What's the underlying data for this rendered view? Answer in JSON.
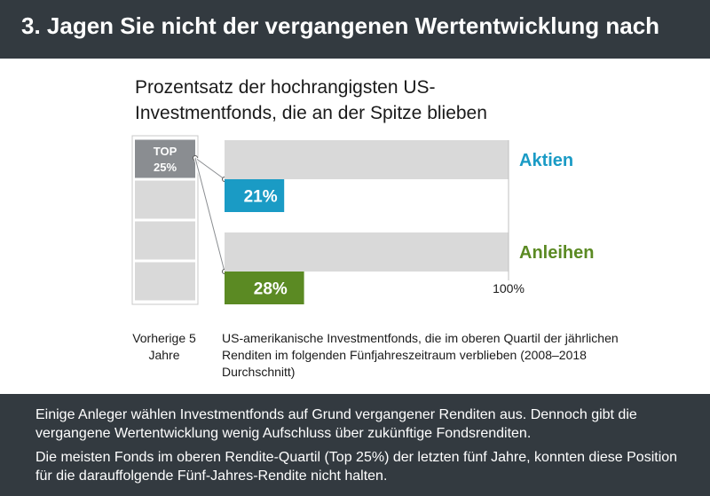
{
  "page": {
    "title": "3. Jagen Sie nicht der vergangenen Wertentwicklung nach"
  },
  "chart_data": {
    "type": "bar",
    "subtitle": "Prozentsatz der hochrangigsten US-Investmentfonds, die an der Spitze blieben",
    "categories": [
      "Aktien",
      "Anleihen"
    ],
    "values": [
      21,
      28
    ],
    "value_labels": [
      "21%",
      "28%"
    ],
    "xlim": [
      0,
      100
    ],
    "max_label": "100%",
    "category_colors": [
      "#1a9bc5",
      "#5b8a23"
    ],
    "track_color": "#d9d9d9",
    "quartile_box": {
      "top_label_line1": "TOP",
      "top_label_line2": "25%",
      "segments": 4,
      "highlight_color": "#8a8d91"
    },
    "legend_left": "Vorherige 5 Jahre",
    "legend_right": "US-amerikanische Investmentfonds, die im oberen Quartil der jährlichen Renditen im folgenden Fünfjahreszeitraum verblieben (2008–2018 Durchschnitt)"
  },
  "footer": {
    "paragraph1": "Einige Anleger wählen Investmentfonds auf Grund vergangener Renditen aus. Dennoch gibt die vergangene Wertentwicklung wenig Aufschluss über zukünftige Fondsrenditen.",
    "paragraph2": "Die meisten Fonds im oberen Rendite-Quartil (Top 25%) der letzten fünf Jahre, konnten diese Position für die darauffolgende Fünf-Jahres-Rendite nicht halten."
  }
}
